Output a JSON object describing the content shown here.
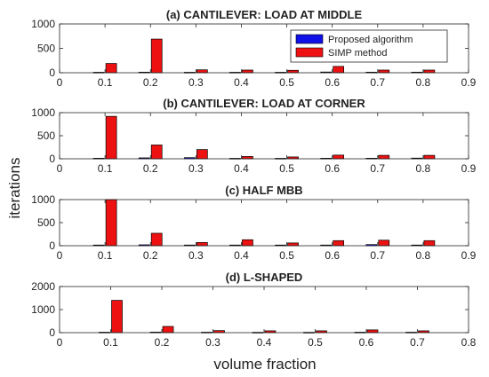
{
  "figure": {
    "ylabel": "iterations",
    "xlabel": "volume fraction"
  },
  "chart_data": [
    {
      "type": "bar",
      "title": "(a) CANTILEVER: LOAD AT MIDDLE",
      "xlim": [
        0,
        0.9
      ],
      "ylim": [
        0,
        1000
      ],
      "xticks": [
        "0",
        "0.1",
        "0.2",
        "0.3",
        "0.4",
        "0.5",
        "0.6",
        "0.7",
        "0.8",
        "0.9"
      ],
      "yticks": [
        "0",
        "500",
        "1000"
      ],
      "x": [
        0.1,
        0.2,
        0.3,
        0.4,
        0.5,
        0.6,
        0.7,
        0.8
      ],
      "series": [
        {
          "name": "Proposed algorithm",
          "color": "#1010e8",
          "values": [
            10,
            12,
            10,
            10,
            10,
            15,
            12,
            12
          ]
        },
        {
          "name": "SIMP method",
          "color": "#ee1111",
          "values": [
            190,
            690,
            60,
            55,
            50,
            130,
            55,
            55
          ]
        }
      ],
      "legend": "top-right"
    },
    {
      "type": "bar",
      "title": "(b) CANTILEVER: LOAD AT CORNER",
      "xlim": [
        0,
        0.9
      ],
      "ylim": [
        0,
        1000
      ],
      "xticks": [
        "0",
        "0.1",
        "0.2",
        "0.3",
        "0.4",
        "0.5",
        "0.6",
        "0.7",
        "0.8",
        "0.9"
      ],
      "yticks": [
        "0",
        "500",
        "1000"
      ],
      "x": [
        0.1,
        0.2,
        0.3,
        0.4,
        0.5,
        0.6,
        0.7,
        0.8
      ],
      "series": [
        {
          "name": "Proposed algorithm",
          "color": "#1010e8",
          "values": [
            12,
            20,
            25,
            10,
            10,
            12,
            12,
            15
          ]
        },
        {
          "name": "SIMP method",
          "color": "#ee1111",
          "values": [
            920,
            300,
            200,
            50,
            40,
            80,
            75,
            75
          ]
        }
      ]
    },
    {
      "type": "bar",
      "title": "(c) HALF MBB",
      "xlim": [
        0,
        0.9
      ],
      "ylim": [
        0,
        1000
      ],
      "xticks": [
        "0",
        "0.1",
        "0.2",
        "0.3",
        "0.4",
        "0.5",
        "0.6",
        "0.7",
        "0.8",
        "0.9"
      ],
      "yticks": [
        "0",
        "500",
        "1000"
      ],
      "x": [
        0.1,
        0.2,
        0.3,
        0.4,
        0.5,
        0.6,
        0.7,
        0.8
      ],
      "series": [
        {
          "name": "Proposed algorithm",
          "color": "#1010e8",
          "values": [
            15,
            20,
            15,
            15,
            15,
            15,
            25,
            15
          ]
        },
        {
          "name": "SIMP method",
          "color": "#ee1111",
          "values": [
            1000,
            270,
            70,
            130,
            60,
            110,
            120,
            110
          ]
        }
      ]
    },
    {
      "type": "bar",
      "title": "(d) L-SHAPED",
      "xlim": [
        0,
        0.8
      ],
      "ylim": [
        0,
        2000
      ],
      "xticks": [
        "0",
        "0.1",
        "0.2",
        "0.3",
        "0.4",
        "0.5",
        "0.6",
        "0.7",
        "0.8"
      ],
      "yticks": [
        "0",
        "1000",
        "2000"
      ],
      "x": [
        0.1,
        0.2,
        0.3,
        0.4,
        0.5,
        0.6,
        0.7
      ],
      "series": [
        {
          "name": "Proposed algorithm",
          "color": "#1010e8",
          "values": [
            20,
            25,
            20,
            15,
            15,
            20,
            20
          ]
        },
        {
          "name": "SIMP method",
          "color": "#ee1111",
          "values": [
            1400,
            270,
            90,
            80,
            80,
            120,
            80
          ]
        }
      ]
    }
  ]
}
